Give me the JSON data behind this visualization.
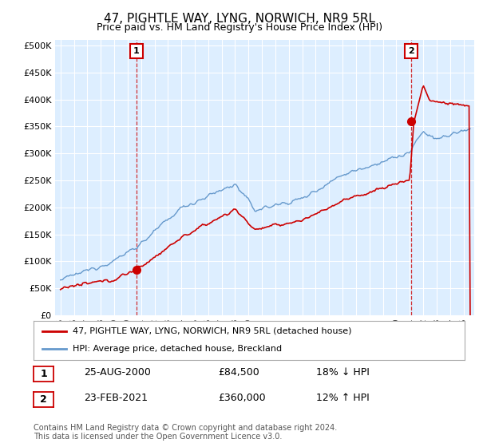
{
  "title": "47, PIGHTLE WAY, LYNG, NORWICH, NR9 5RL",
  "subtitle": "Price paid vs. HM Land Registry's House Price Index (HPI)",
  "yticks": [
    0,
    50000,
    100000,
    150000,
    200000,
    250000,
    300000,
    350000,
    400000,
    450000,
    500000
  ],
  "ytick_labels": [
    "£0",
    "£50K",
    "£100K",
    "£150K",
    "£200K",
    "£250K",
    "£300K",
    "£350K",
    "£400K",
    "£450K",
    "£500K"
  ],
  "plot_bg_color": "#ddeeff",
  "grid_color": "#ffffff",
  "sale1_date": 2000.65,
  "sale1_price": 84500,
  "sale2_date": 2021.12,
  "sale2_price": 360000,
  "legend_line1": "47, PIGHTLE WAY, LYNG, NORWICH, NR9 5RL (detached house)",
  "legend_line2": "HPI: Average price, detached house, Breckland",
  "table_row1": [
    "1",
    "25-AUG-2000",
    "£84,500",
    "18% ↓ HPI"
  ],
  "table_row2": [
    "2",
    "23-FEB-2021",
    "£360,000",
    "12% ↑ HPI"
  ],
  "footnote": "Contains HM Land Registry data © Crown copyright and database right 2024.\nThis data is licensed under the Open Government Licence v3.0.",
  "line_color_red": "#cc0000",
  "line_color_blue": "#6699cc",
  "marker_color_red": "#cc0000"
}
